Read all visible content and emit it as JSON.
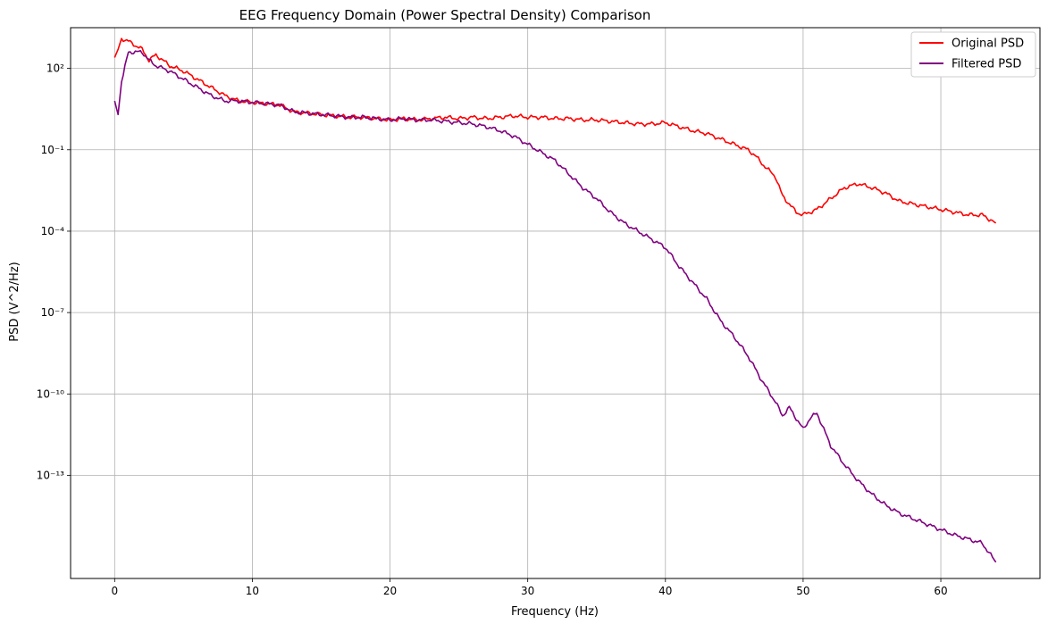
{
  "chart_data": {
    "type": "line",
    "title": "EEG Frequency Domain (Power Spectral Density) Comparison",
    "xlabel": "Frequency (Hz)",
    "ylabel": "PSD (V^2/Hz)",
    "yscale": "log",
    "xlim": [
      -3.2,
      67.2
    ],
    "ylim_log10": [
      -16.8,
      3.5
    ],
    "x_ticks": [
      0,
      10,
      20,
      30,
      40,
      50,
      60
    ],
    "y_ticks": [
      {
        "exp": 2,
        "label": "10²"
      },
      {
        "exp": -1,
        "label": "10⁻¹"
      },
      {
        "exp": -4,
        "label": "10⁻⁴"
      },
      {
        "exp": -7,
        "label": "10⁻⁷"
      },
      {
        "exp": -10,
        "label": "10⁻¹⁰"
      },
      {
        "exp": -13,
        "label": "10⁻¹³"
      }
    ],
    "grid": true,
    "legend_position": "top-right",
    "series": [
      {
        "name": "Original PSD",
        "color": "#ff0000",
        "x": [
          0,
          0.25,
          0.5,
          1,
          2,
          2.5,
          3,
          4,
          5,
          6,
          7,
          8,
          9,
          10,
          11,
          12,
          13,
          14,
          15,
          16,
          17,
          18,
          19,
          20,
          21,
          22,
          23,
          24,
          25,
          26,
          27,
          28,
          29,
          30,
          31,
          32,
          33,
          34,
          35,
          36,
          37,
          38,
          39,
          40,
          41,
          42,
          43,
          44,
          45,
          46,
          46.5,
          47,
          48,
          48.5,
          49,
          49.5,
          50,
          50.5,
          51,
          51.5,
          52,
          53,
          54,
          55,
          56,
          57,
          58,
          59,
          60,
          61,
          62,
          63,
          64
        ],
        "log10_y": [
          2.4,
          2.7,
          3.1,
          3.0,
          2.7,
          2.3,
          2.5,
          2.1,
          1.9,
          1.6,
          1.3,
          1.0,
          0.8,
          0.75,
          0.7,
          0.65,
          0.4,
          0.35,
          0.3,
          0.25,
          0.2,
          0.2,
          0.15,
          0.1,
          0.15,
          0.1,
          0.15,
          0.2,
          0.15,
          0.2,
          0.15,
          0.2,
          0.25,
          0.2,
          0.2,
          0.15,
          0.15,
          0.1,
          0.1,
          0.05,
          0.0,
          -0.05,
          -0.05,
          0.0,
          -0.15,
          -0.3,
          -0.4,
          -0.6,
          -0.8,
          -1.0,
          -1.2,
          -1.5,
          -2.0,
          -2.7,
          -3.0,
          -3.3,
          -3.4,
          -3.3,
          -3.2,
          -3.0,
          -2.8,
          -2.4,
          -2.25,
          -2.4,
          -2.6,
          -2.9,
          -3.0,
          -3.1,
          -3.2,
          -3.3,
          -3.4,
          -3.4,
          -3.7
        ]
      },
      {
        "name": "Filtered PSD",
        "color": "#800080",
        "x": [
          0,
          0.25,
          0.5,
          1,
          2,
          2.5,
          3,
          4,
          5,
          6,
          7,
          8,
          9,
          10,
          11,
          12,
          13,
          14,
          15,
          16,
          17,
          18,
          19,
          20,
          21,
          22,
          23,
          24,
          25,
          26,
          27,
          28,
          29,
          30,
          31,
          32,
          33,
          34,
          35,
          36,
          37,
          38,
          39,
          40,
          41,
          42,
          43,
          44,
          45,
          46,
          47,
          48,
          48.5,
          49,
          49.5,
          50,
          50.5,
          51,
          51.5,
          52,
          53,
          54,
          55,
          56,
          57,
          58,
          59,
          60,
          61,
          62,
          63,
          64
        ],
        "log10_y": [
          0.8,
          0.3,
          1.5,
          2.6,
          2.6,
          2.3,
          2.1,
          1.9,
          1.6,
          1.3,
          1.0,
          0.8,
          0.8,
          0.75,
          0.7,
          0.65,
          0.4,
          0.35,
          0.3,
          0.25,
          0.2,
          0.2,
          0.15,
          0.1,
          0.15,
          0.1,
          0.1,
          0.05,
          0.0,
          -0.05,
          -0.15,
          -0.3,
          -0.5,
          -0.8,
          -1.1,
          -1.4,
          -1.9,
          -2.4,
          -2.8,
          -3.3,
          -3.7,
          -4.0,
          -4.3,
          -4.6,
          -5.3,
          -5.9,
          -6.5,
          -7.3,
          -7.9,
          -8.6,
          -9.5,
          -10.3,
          -10.8,
          -10.5,
          -10.9,
          -11.3,
          -10.9,
          -10.7,
          -11.3,
          -11.9,
          -12.6,
          -13.2,
          -13.7,
          -14.1,
          -14.4,
          -14.6,
          -14.8,
          -15.0,
          -15.2,
          -15.35,
          -15.5,
          -16.2
        ]
      }
    ]
  }
}
